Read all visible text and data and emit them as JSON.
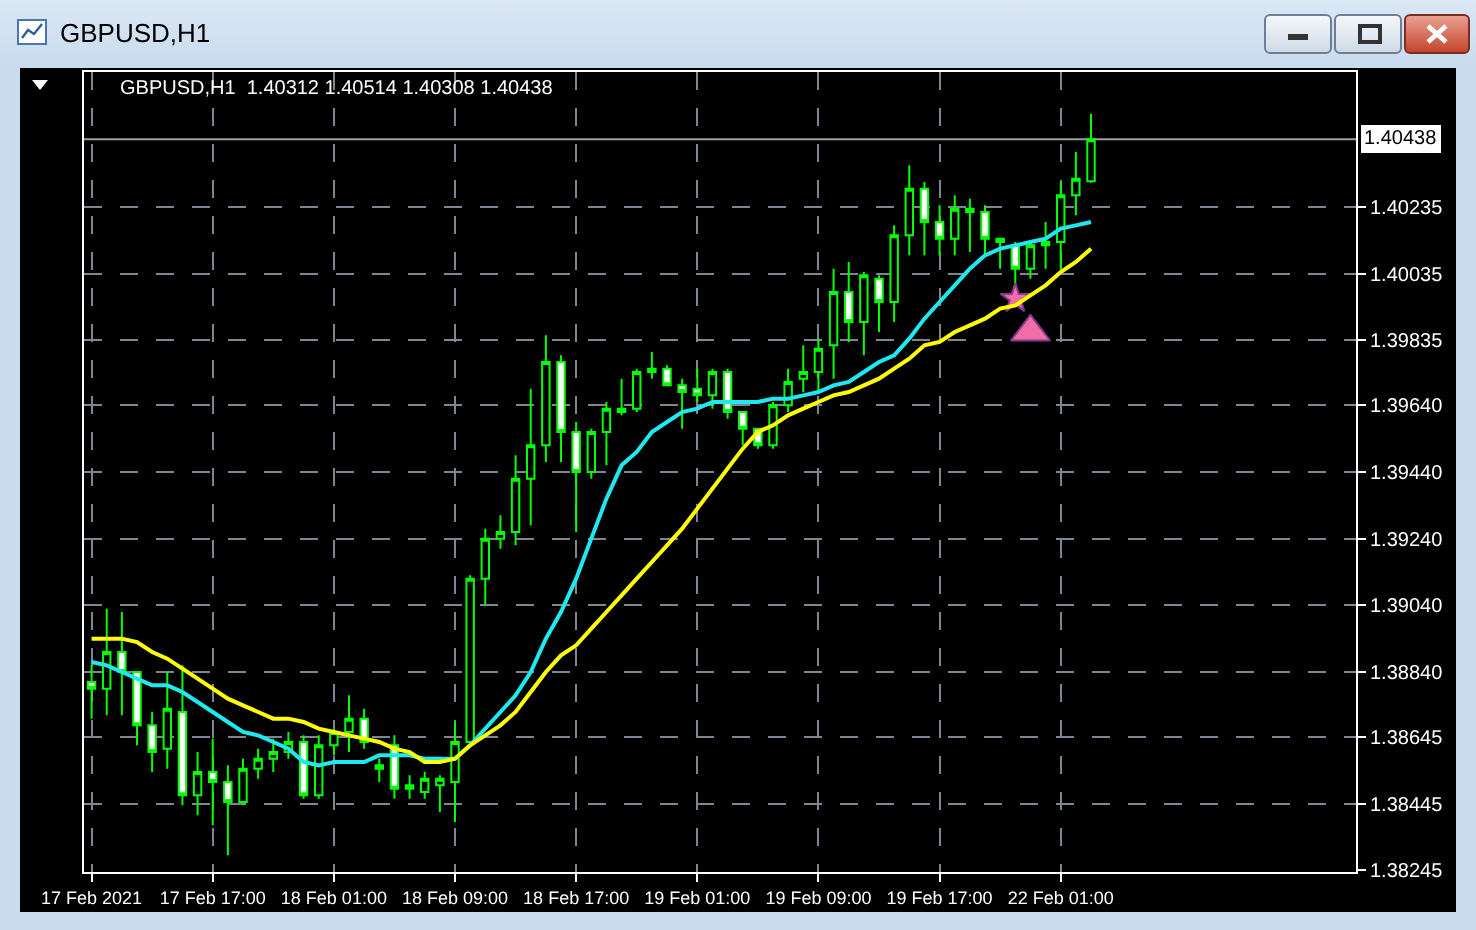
{
  "chart_data": {
    "type": "candlestick",
    "title": "GBPUSD,H1",
    "subtitle": "GBPUSD,H1  1.40312 1.40514 1.40308 1.40438",
    "categories": [
      "17 Feb 2021",
      null,
      null,
      null,
      null,
      null,
      null,
      null,
      "17 Feb 17:00",
      null,
      null,
      null,
      null,
      null,
      null,
      null,
      "18 Feb 01:00",
      null,
      null,
      null,
      null,
      null,
      null,
      null,
      "18 Feb 09:00",
      null,
      null,
      null,
      null,
      null,
      null,
      null,
      "18 Feb 17:00",
      null,
      null,
      null,
      null,
      null,
      null,
      null,
      "19 Feb 01:00",
      null,
      null,
      null,
      null,
      null,
      null,
      null,
      "19 Feb 09:00",
      null,
      null,
      null,
      null,
      null,
      null,
      null,
      "19 Feb 17:00",
      null,
      null,
      null,
      null,
      null,
      null,
      null,
      "22 Feb 01:00",
      null,
      null,
      null,
      null,
      null,
      null,
      null,
      null,
      null,
      null,
      null,
      null,
      null,
      null,
      null,
      null,
      null,
      null,
      null
    ],
    "color": "#00ff00",
    "ohlc": [
      [
        1.3881,
        1.3886,
        1.387,
        1.3879
      ],
      [
        1.3879,
        1.3903,
        1.3871,
        1.389
      ],
      [
        1.389,
        1.3902,
        1.3871,
        1.3884
      ],
      [
        1.3884,
        1.3884,
        1.3862,
        1.3868
      ],
      [
        1.3868,
        1.3872,
        1.3854,
        1.386
      ],
      [
        1.3861,
        1.3884,
        1.3855,
        1.3873
      ],
      [
        1.3872,
        1.3886,
        1.3844,
        1.3847
      ],
      [
        1.3847,
        1.386,
        1.3841,
        1.3854
      ],
      [
        1.3854,
        1.3864,
        1.3838,
        1.3851
      ],
      [
        1.3851,
        1.3856,
        1.3829,
        1.3845
      ],
      [
        1.3845,
        1.3858,
        1.3844,
        1.3855
      ],
      [
        1.3855,
        1.3861,
        1.3852,
        1.3858
      ],
      [
        1.3858,
        1.3864,
        1.3854,
        1.386
      ],
      [
        1.386,
        1.3866,
        1.3858,
        1.3863
      ],
      [
        1.3863,
        1.3865,
        1.3846,
        1.3847
      ],
      [
        1.3847,
        1.3865,
        1.3846,
        1.3862
      ],
      [
        1.3862,
        1.3867,
        1.3859,
        1.3866
      ],
      [
        1.3866,
        1.3877,
        1.386,
        1.387
      ],
      [
        1.387,
        1.3873,
        1.3861,
        1.3863
      ],
      [
        1.3855,
        1.3858,
        1.3851,
        1.3856
      ],
      [
        1.3862,
        1.3865,
        1.3846,
        1.3849
      ],
      [
        1.3849,
        1.3853,
        1.3846,
        1.385
      ],
      [
        1.3848,
        1.3854,
        1.3846,
        1.3852
      ],
      [
        1.385,
        1.3853,
        1.3842,
        1.3852
      ],
      [
        1.3851,
        1.3869,
        1.3839,
        1.3863
      ],
      [
        1.3863,
        1.3913,
        1.3863,
        1.3912
      ],
      [
        1.3912,
        1.3927,
        1.3904,
        1.3924
      ],
      [
        1.3924,
        1.3931,
        1.3921,
        1.3926
      ],
      [
        1.3926,
        1.3949,
        1.3922,
        1.3942
      ],
      [
        1.3942,
        1.3969,
        1.3928,
        1.3952
      ],
      [
        1.3952,
        1.3985,
        1.3947,
        1.3977
      ],
      [
        1.3977,
        1.3979,
        1.3947,
        1.3956
      ],
      [
        1.3956,
        1.3959,
        1.3926,
        1.3944
      ],
      [
        1.3944,
        1.3957,
        1.3942,
        1.3956
      ],
      [
        1.3956,
        1.3965,
        1.3946,
        1.3963
      ],
      [
        1.3962,
        1.3972,
        1.3961,
        1.3963
      ],
      [
        1.3963,
        1.3975,
        1.3962,
        1.3974
      ],
      [
        1.3974,
        1.398,
        1.3972,
        1.3975
      ],
      [
        1.3975,
        1.3976,
        1.397,
        1.397
      ],
      [
        1.397,
        1.3972,
        1.3957,
        1.3968
      ],
      [
        1.3969,
        1.3975,
        1.3965,
        1.3967
      ],
      [
        1.3967,
        1.3975,
        1.3963,
        1.3974
      ],
      [
        1.3974,
        1.3975,
        1.396,
        1.3962
      ],
      [
        1.3962,
        1.3962,
        1.3952,
        1.3957
      ],
      [
        1.3957,
        1.3957,
        1.3951,
        1.3952
      ],
      [
        1.3952,
        1.3965,
        1.3951,
        1.3964
      ],
      [
        1.3964,
        1.3975,
        1.3962,
        1.3971
      ],
      [
        1.3972,
        1.3982,
        1.3968,
        1.3974
      ],
      [
        1.3974,
        1.3984,
        1.3968,
        1.3981
      ],
      [
        1.3982,
        1.4005,
        1.3972,
        1.3998
      ],
      [
        1.3998,
        1.4007,
        1.3983,
        1.3989
      ],
      [
        1.3989,
        1.4004,
        1.3979,
        1.4003
      ],
      [
        1.4002,
        1.4003,
        1.3986,
        1.3995
      ],
      [
        1.3995,
        1.4018,
        1.3989,
        1.4015
      ],
      [
        1.4015,
        1.4036,
        1.4009,
        1.4029
      ],
      [
        1.4029,
        1.4031,
        1.4009,
        1.4019
      ],
      [
        1.4019,
        1.4024,
        1.4009,
        1.4014
      ],
      [
        1.4014,
        1.4027,
        1.4009,
        1.4023
      ],
      [
        1.4022,
        1.4026,
        1.401,
        1.4023
      ],
      [
        1.4022,
        1.4024,
        1.4009,
        1.4014
      ],
      [
        1.4013,
        1.4014,
        1.4005,
        1.4014
      ],
      [
        1.4012,
        1.4013,
        1.4,
        1.4005
      ],
      [
        1.4005,
        1.4013,
        1.4002,
        1.4012
      ],
      [
        1.4012,
        1.4019,
        1.4005,
        1.4013
      ],
      [
        1.4013,
        1.4031,
        1.4005,
        1.4027
      ],
      [
        1.4027,
        1.404,
        1.4021,
        1.4032
      ],
      [
        1.40312,
        1.40514,
        1.40308,
        1.40438
      ],
      null,
      null,
      null,
      null,
      null,
      null,
      null,
      null,
      null,
      null,
      null,
      null,
      null,
      null,
      null,
      null,
      null
    ],
    "series": [
      {
        "type": "line",
        "color": "#1ee8f0",
        "values": [
          1.3887,
          1.3886,
          1.3884,
          1.3882,
          1.388,
          1.388,
          1.3878,
          1.3875,
          1.3872,
          1.3869,
          1.3866,
          1.3865,
          1.3863,
          1.3861,
          1.3857,
          1.3856,
          1.3857,
          1.3857,
          1.3857,
          1.3859,
          1.3859,
          1.3859,
          1.3858,
          1.3858,
          1.3858,
          1.3862,
          1.3867,
          1.3872,
          1.3877,
          1.3884,
          1.3894,
          1.3902,
          1.3912,
          1.3924,
          1.3936,
          1.3946,
          1.395,
          1.3956,
          1.3959,
          1.3962,
          1.3963,
          1.3965,
          1.3965,
          1.3965,
          1.3965,
          1.3966,
          1.3966,
          1.3967,
          1.3968,
          1.397,
          1.3971,
          1.3974,
          1.3977,
          1.3979,
          1.3984,
          1.399,
          1.3995,
          1.4,
          1.4005,
          1.4009,
          1.4011,
          1.4012,
          1.4013,
          1.4014,
          1.4017,
          1.4018,
          1.4019,
          null,
          null,
          null,
          null,
          null,
          null,
          null,
          null,
          null,
          null,
          null,
          null,
          null,
          null,
          null,
          null,
          null
        ]
      },
      {
        "type": "line",
        "color": "#ffff00",
        "values": [
          1.3894,
          1.3894,
          1.3894,
          1.3893,
          1.389,
          1.3888,
          1.3885,
          1.3882,
          1.3879,
          1.3876,
          1.3874,
          1.3872,
          1.387,
          1.387,
          1.3869,
          1.3867,
          1.3866,
          1.3865,
          1.3864,
          1.3863,
          1.3861,
          1.386,
          1.3857,
          1.3857,
          1.3858,
          1.3862,
          1.3865,
          1.3868,
          1.3872,
          1.3878,
          1.3884,
          1.3889,
          1.3892,
          1.3897,
          1.3902,
          1.3907,
          1.3912,
          1.3917,
          1.3922,
          1.3927,
          1.3933,
          1.3939,
          1.3945,
          1.3951,
          1.3956,
          1.3958,
          1.3961,
          1.3963,
          1.3965,
          1.3967,
          1.3968,
          1.397,
          1.3972,
          1.3975,
          1.3978,
          1.3982,
          1.3983,
          1.3986,
          1.3988,
          1.399,
          1.3993,
          1.3994,
          1.3997,
          1.4,
          1.4004,
          1.4007,
          1.4011,
          null,
          null,
          null,
          null,
          null,
          null,
          null,
          null,
          null,
          null,
          null,
          null,
          null,
          null,
          null,
          null,
          null
        ]
      },
      {
        "type": "scatter",
        "marker": "star",
        "color": "#f06ea8",
        "values": [
          null,
          null,
          null,
          null,
          null,
          null,
          null,
          null,
          null,
          null,
          null,
          null,
          null,
          null,
          null,
          null,
          null,
          null,
          null,
          null,
          null,
          null,
          null,
          null,
          null,
          null,
          null,
          null,
          null,
          null,
          null,
          null,
          null,
          null,
          null,
          null,
          null,
          null,
          null,
          null,
          null,
          null,
          null,
          null,
          null,
          null,
          null,
          null,
          null,
          null,
          null,
          null,
          null,
          null,
          null,
          null,
          null,
          null,
          null,
          null,
          null,
          1.3996,
          null,
          null,
          null,
          null,
          null,
          null,
          null,
          null,
          null,
          null,
          null,
          null,
          null,
          null,
          null,
          null,
          null,
          null,
          null,
          null,
          null,
          null
        ]
      },
      {
        "type": "scatter",
        "marker": "triangle",
        "color": "#f06ea8",
        "values": [
          null,
          null,
          null,
          null,
          null,
          null,
          null,
          null,
          null,
          null,
          null,
          null,
          null,
          null,
          null,
          null,
          null,
          null,
          null,
          null,
          null,
          null,
          null,
          null,
          null,
          null,
          null,
          null,
          null,
          null,
          null,
          null,
          null,
          null,
          null,
          null,
          null,
          null,
          null,
          null,
          null,
          null,
          null,
          null,
          null,
          null,
          null,
          null,
          null,
          null,
          null,
          null,
          null,
          null,
          null,
          null,
          null,
          null,
          null,
          null,
          null,
          null,
          1.3986,
          null,
          null,
          null,
          null,
          null,
          null,
          null,
          null,
          null,
          null,
          null,
          null,
          null,
          null,
          null,
          null,
          null,
          null,
          null,
          null,
          null
        ]
      }
    ],
    "ylim": [
      1.3824,
      1.4064
    ],
    "yticks": [
      1.38245,
      1.38445,
      1.38645,
      {
        "value": 1.3884,
        "label": "1.38840"
      },
      {
        "value": 1.3904,
        "label": "1.39040"
      },
      {
        "value": 1.3924,
        "label": "1.39240"
      },
      {
        "value": 1.3944,
        "label": "1.39440"
      },
      {
        "value": 1.3964,
        "label": "1.39640"
      },
      1.39835,
      1.40035,
      1.40235
    ],
    "ref_lines": [
      {
        "axis": "y",
        "value": 1.40438,
        "label": "1.40438",
        "color": "#9aa0a8",
        "line_style": "solid"
      }
    ],
    "grid": true
  }
}
